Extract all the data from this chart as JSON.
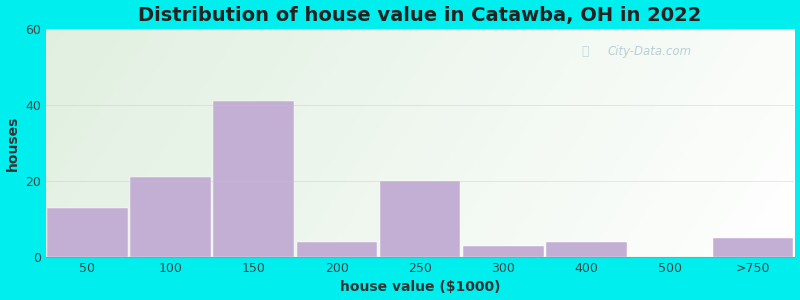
{
  "title": "Distribution of house value in Catawba, OH in 2022",
  "xlabel": "house value ($1000)",
  "ylabel": "houses",
  "bar_labels": [
    "50",
    "100",
    "150",
    "200",
    "250",
    "300",
    "400",
    "500",
    ">750"
  ],
  "bar_values": [
    13,
    21,
    41,
    4,
    20,
    3,
    4,
    0,
    5
  ],
  "bar_positions": [
    0,
    1,
    2,
    3,
    4,
    5,
    6,
    7,
    8
  ],
  "bar_color": "#c4afd4",
  "ylim": [
    0,
    60
  ],
  "yticks": [
    0,
    20,
    40,
    60
  ],
  "outer_bg": "#00eeee",
  "plot_bg_top_left": "#d8f0d8",
  "plot_bg_top_right": "#f0f8f0",
  "plot_bg_bottom": "#e8f5e0",
  "title_fontsize": 14,
  "axis_label_fontsize": 10,
  "tick_fontsize": 9,
  "watermark_text": "City-Data.com",
  "watermark_color": "#aec8d0",
  "watermark_alpha": 0.85
}
